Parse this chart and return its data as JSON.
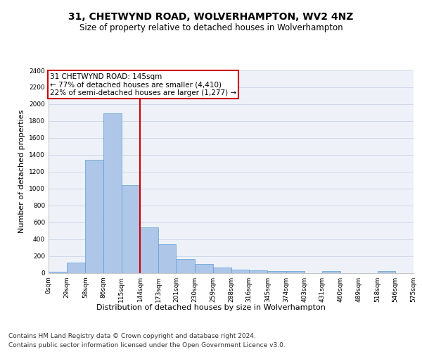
{
  "title_line1": "31, CHETWYND ROAD, WOLVERHAMPTON, WV2 4NZ",
  "title_line2": "Size of property relative to detached houses in Wolverhampton",
  "xlabel": "Distribution of detached houses by size in Wolverhampton",
  "ylabel": "Number of detached properties",
  "footer_line1": "Contains HM Land Registry data © Crown copyright and database right 2024.",
  "footer_line2": "Contains public sector information licensed under the Open Government Licence v3.0.",
  "annotation_title": "31 CHETWYND ROAD: 145sqm",
  "annotation_line1": "← 77% of detached houses are smaller (4,410)",
  "annotation_line2": "22% of semi-detached houses are larger (1,277) →",
  "subject_value": 145,
  "bar_edges": [
    0,
    29,
    58,
    86,
    115,
    144,
    173,
    201,
    230,
    259,
    288,
    316,
    345,
    374,
    403,
    431,
    460,
    489,
    518,
    546,
    575
  ],
  "bar_heights": [
    15,
    125,
    1340,
    1890,
    1040,
    540,
    335,
    165,
    105,
    65,
    40,
    30,
    25,
    20,
    0,
    20,
    0,
    0,
    20,
    0,
    15
  ],
  "bar_color": "#aec6e8",
  "bar_edge_color": "#5a9fd4",
  "vline_color": "#cc0000",
  "vline_x": 144,
  "ylim": [
    0,
    2400
  ],
  "yticks": [
    0,
    200,
    400,
    600,
    800,
    1000,
    1200,
    1400,
    1600,
    1800,
    2000,
    2200,
    2400
  ],
  "grid_color": "#d0d8e8",
  "background_color": "#eef2f8",
  "annotation_box_color": "#cc0000",
  "title_fontsize": 10,
  "subtitle_fontsize": 8.5,
  "axis_label_fontsize": 8,
  "tick_label_fontsize": 6.5,
  "footer_fontsize": 6.5,
  "annotation_fontsize": 7.5
}
